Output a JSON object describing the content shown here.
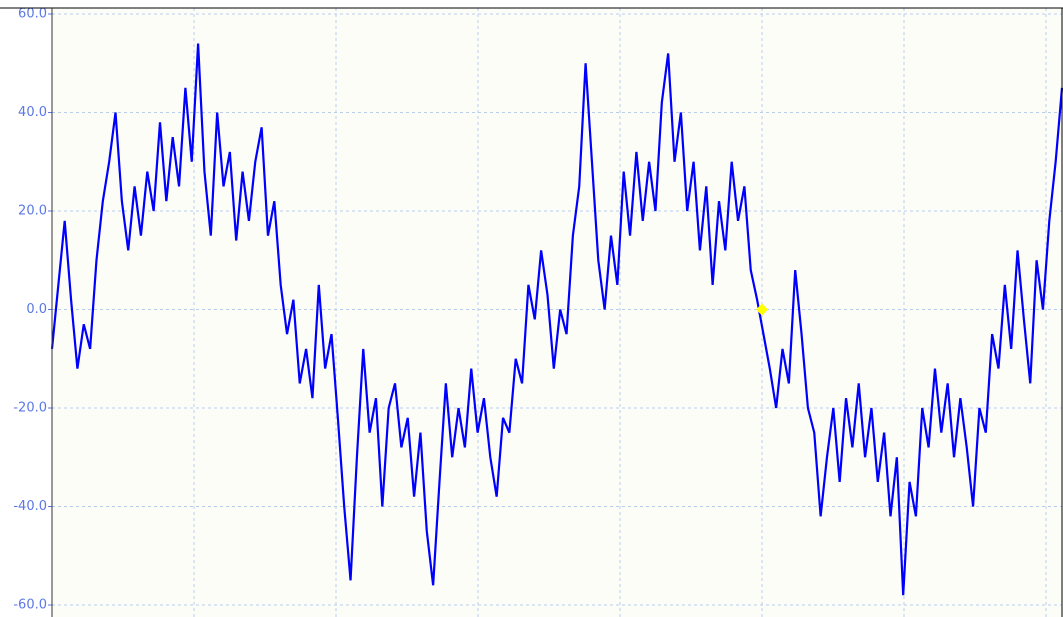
{
  "chart_data": {
    "type": "line",
    "ylim": [
      -60,
      60
    ],
    "yticks": [
      {
        "value": 60,
        "label": "60.0"
      },
      {
        "value": 40,
        "label": "40.0"
      },
      {
        "value": 20,
        "label": "20.0"
      },
      {
        "value": 0,
        "label": "0.0"
      },
      {
        "value": -20,
        "label": "-20.0"
      },
      {
        "value": -40,
        "label": "-40.0"
      },
      {
        "value": -60,
        "label": "-60.0"
      }
    ],
    "grid": true,
    "series": [
      {
        "color": "#0000ff",
        "values": [
          -8,
          5,
          18,
          2,
          -12,
          -3,
          -8,
          10,
          22,
          30,
          40,
          22,
          12,
          25,
          15,
          28,
          20,
          38,
          22,
          35,
          25,
          45,
          30,
          54,
          28,
          15,
          40,
          25,
          32,
          14,
          28,
          18,
          30,
          37,
          15,
          22,
          5,
          -5,
          2,
          -15,
          -8,
          -18,
          5,
          -12,
          -5,
          -22,
          -40,
          -55,
          -30,
          -8,
          -25,
          -18,
          -40,
          -20,
          -15,
          -28,
          -22,
          -38,
          -25,
          -45,
          -56,
          -35,
          -15,
          -30,
          -20,
          -28,
          -12,
          -25,
          -18,
          -30,
          -38,
          -22,
          -25,
          -10,
          -15,
          5,
          -2,
          12,
          3,
          -12,
          0,
          -5,
          15,
          25,
          50,
          30,
          10,
          0,
          15,
          5,
          28,
          15,
          32,
          18,
          30,
          20,
          42,
          52,
          30,
          40,
          20,
          30,
          12,
          25,
          5,
          22,
          12,
          30,
          18,
          25,
          8,
          2,
          -5,
          -12,
          -20,
          -8,
          -15,
          8,
          -5,
          -20,
          -25,
          -42,
          -30,
          -20,
          -35,
          -18,
          -28,
          -15,
          -30,
          -20,
          -35,
          -25,
          -42,
          -30,
          -58,
          -35,
          -42,
          -20,
          -28,
          -12,
          -25,
          -15,
          -30,
          -18,
          -28,
          -40,
          -20,
          -25,
          -5,
          -12,
          5,
          -8,
          12,
          -2,
          -15,
          10,
          0,
          18,
          30,
          45
        ]
      }
    ],
    "marker": {
      "value": 0,
      "color": "#ffff00"
    }
  }
}
